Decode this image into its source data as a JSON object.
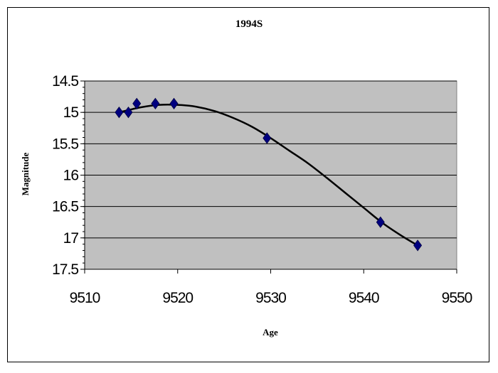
{
  "chart_data": {
    "type": "scatter",
    "title": "1994S",
    "xlabel": "Age",
    "ylabel": "Magnitude",
    "xlim": [
      9510,
      9550
    ],
    "ylim": [
      14.5,
      17.5
    ],
    "y_inverted": true,
    "x_ticks": [
      "9510",
      "9520",
      "9530",
      "9540",
      "9550"
    ],
    "y_ticks": [
      "14.5",
      "15",
      "15.5",
      "16",
      "16.5",
      "17",
      "17.5"
    ],
    "grid": true,
    "legend": "none",
    "plot_background": "#c0c0c0",
    "marker_color": "#000080",
    "line_color": "#000000",
    "series": [
      {
        "marker": "diamond",
        "x": [
          9513.7,
          9514.7,
          9515.6,
          9517.6,
          9519.6,
          9529.6,
          9541.8,
          9545.8
        ],
        "y": [
          15.0,
          15.0,
          14.86,
          14.86,
          14.86,
          15.41,
          16.75,
          17.12
        ]
      }
    ],
    "trendline": {
      "x": [
        9513.7,
        9516,
        9518,
        9520,
        9522,
        9524,
        9526,
        9528,
        9530,
        9532,
        9534,
        9536,
        9538,
        9540,
        9542,
        9544,
        9545.8
      ],
      "y": [
        15.0,
        14.92,
        14.88,
        14.88,
        14.91,
        14.98,
        15.09,
        15.23,
        15.41,
        15.61,
        15.81,
        16.04,
        16.28,
        16.52,
        16.76,
        16.96,
        17.12
      ]
    }
  }
}
